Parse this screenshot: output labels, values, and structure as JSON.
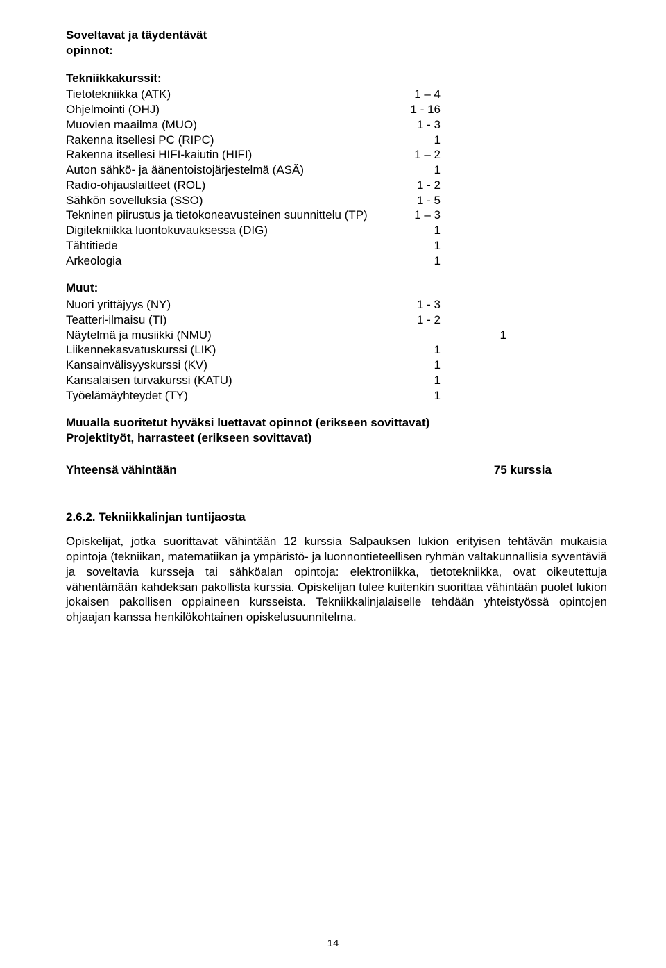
{
  "heading1_line1": "Soveltavat ja täydentävät",
  "heading1_line2": "opinnot:",
  "tech_heading": "Tekniikkakurssit:",
  "tech_rows": [
    {
      "label": "Tietotekniikka (ATK)",
      "val": "1 – 4"
    },
    {
      "label": "Ohjelmointi (OHJ)",
      "val": "1 - 16"
    },
    {
      "label": "Muovien maailma (MUO)",
      "val": "1 - 3"
    },
    {
      "label": "Rakenna itsellesi PC (RIPC)",
      "val": "1"
    },
    {
      "label": "Rakenna itsellesi HIFI-kaiutin (HIFI)",
      "val": "1 – 2"
    },
    {
      "label": "Auton sähkö- ja äänentoistojärjestelmä (ASÄ)",
      "val": "1"
    },
    {
      "label": "Radio-ohjauslaitteet (ROL)",
      "val": "1 - 2"
    },
    {
      "label": "Sähkön sovelluksia (SSO)",
      "val": "1 - 5"
    },
    {
      "label": "Tekninen piirustus ja tietokoneavusteinen suunnittelu (TP)",
      "val": "1 – 3"
    },
    {
      "label": "Digitekniikka luontokuvauksessa (DIG)",
      "val": "1"
    },
    {
      "label": "Tähtitiede",
      "val": "1"
    },
    {
      "label": "Arkeologia",
      "val": "1"
    }
  ],
  "muut_heading": "Muut:",
  "muut_rows_a": [
    {
      "label": "Nuori yrittäjyys (NY)",
      "val": "1 - 3"
    },
    {
      "label": "Teatteri-ilmaisu (TI)",
      "val": "1 - 2"
    }
  ],
  "nmu_label": "Näytelmä ja musiikki (NMU)",
  "nmu_val": "1",
  "muut_rows_b": [
    {
      "label": "Liikennekasvatuskurssi (LIK)",
      "val": "1"
    },
    {
      "label": "Kansainvälisyyskurssi   (KV)",
      "val": "1"
    },
    {
      "label": "Kansalaisen turvakurssi (KATU)",
      "val": "1"
    },
    {
      "label": "Työelämäyhteydet         (TY)",
      "val": "1"
    }
  ],
  "footer1": "Muualla suoritetut hyväksi luettavat opinnot (erikseen sovittavat)",
  "footer2": "Projektityöt, harrasteet (erikseen sovittavat)",
  "total_label": "Yhteensä vähintään",
  "total_val": "75 kurssia",
  "subsection_title": "2.6.2. Tekniikkalinjan tuntijaosta",
  "paragraph": "Opiskelijat, jotka suorittavat vähintään 12 kurssia Salpauksen lukion erityisen tehtävän mukaisia opintoja (tekniikan, matematiikan ja ympäristö- ja luonnontieteellisen ryhmän valtakunnallisia syventäviä ja soveltavia kursseja tai sähköalan opintoja: elektroniikka, tietotekniikka, ovat oikeutettuja vähentämään kahdeksan pakollista kurssia. Opiskelijan tulee kuitenkin suorittaa vähintään puolet lukion jokaisen pakollisen oppiaineen kursseista. Tekniikkalinjalaiselle tehdään yhteistyössä opintojen ohjaajan kanssa henkilökohtainen opiskelusuunnitelma.",
  "page_number": "14"
}
